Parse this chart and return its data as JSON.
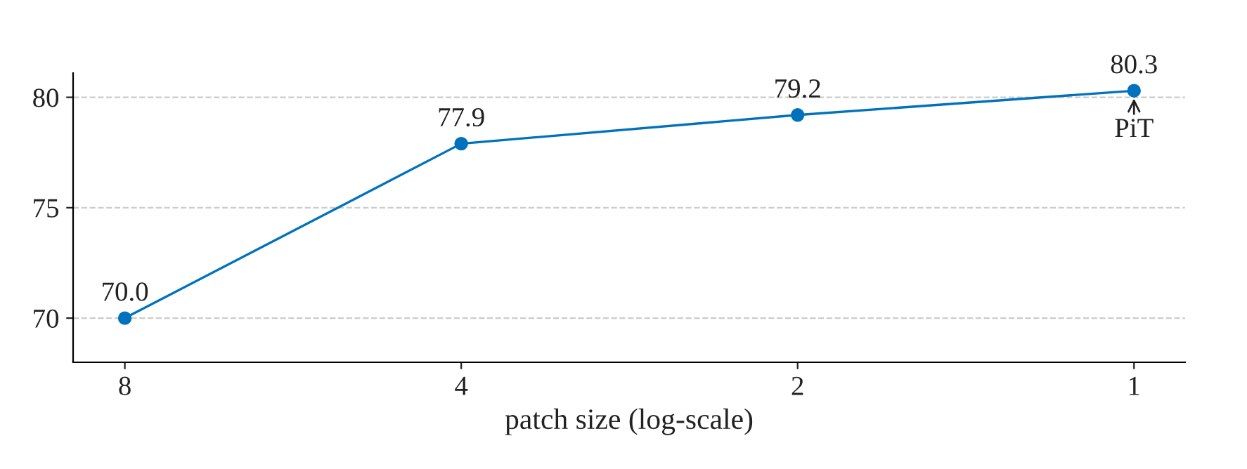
{
  "chart_data": {
    "type": "line",
    "xlabel": "patch size (log-scale)",
    "log": "x",
    "x": [
      8,
      4,
      2,
      1
    ],
    "series": [
      {
        "color": "#0072bd",
        "values": [
          70.0,
          77.9,
          79.2,
          80.3
        ],
        "value_labels": [
          "70.0",
          "77.9",
          "79.2",
          "80.3"
        ]
      }
    ],
    "xlim": [
      8.9,
      0.9
    ],
    "xticks": [
      8,
      4,
      2,
      1
    ],
    "ylim": [
      68,
      81.1
    ],
    "yticks": [
      70,
      75,
      80
    ],
    "grid": "y",
    "marker": "circle",
    "line_style": "solid",
    "annotations": [
      {
        "text": "PiT",
        "x": 1,
        "y": 80.3
      }
    ]
  }
}
